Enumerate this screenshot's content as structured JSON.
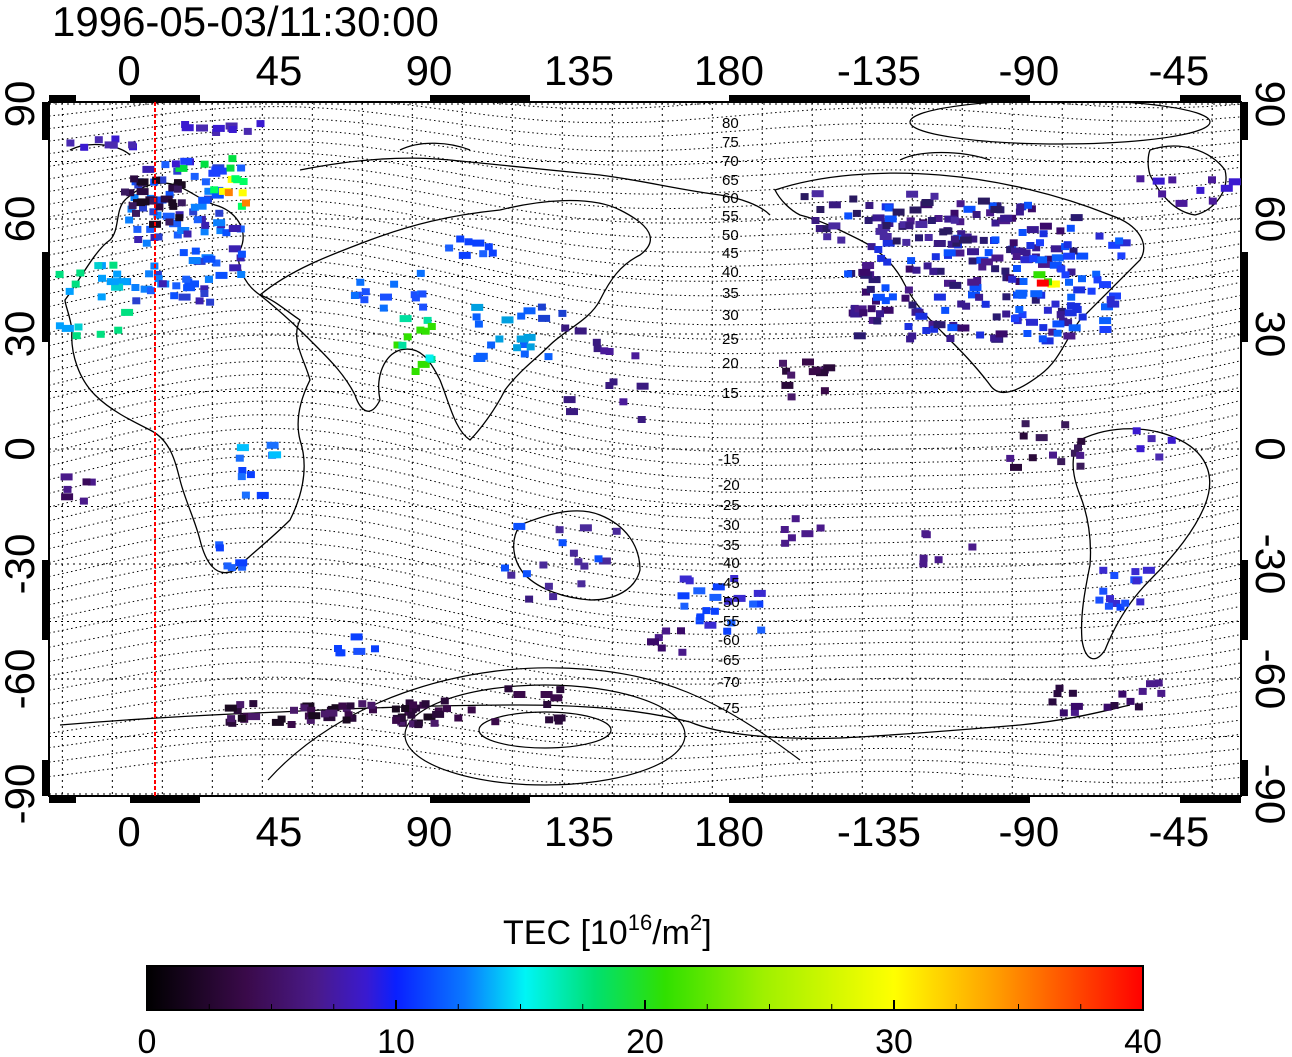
{
  "title": "1996-05-03/11:30:00",
  "map": {
    "lon_tick_labels": [
      "0",
      "45",
      "90",
      "135",
      "180",
      "-135",
      "-90",
      "-45"
    ],
    "lat_tick_labels": [
      "-90",
      "-60",
      "-30",
      "0",
      "30",
      "60",
      "90"
    ],
    "terminator_color": "#ff0000",
    "contour_labels": [
      "80",
      "75",
      "70",
      "65",
      "60",
      "55",
      "50",
      "45",
      "40",
      "35",
      "30",
      "25",
      "20",
      "15",
      "-15",
      "-20",
      "-25",
      "-30",
      "-35",
      "-40",
      "-45",
      "-50",
      "-55",
      "-60",
      "-65",
      "-70",
      "-75"
    ],
    "grid": true
  },
  "colorbar": {
    "label": "TEC  [10",
    "label_sup1": "16",
    "label_mid": "/m",
    "label_sup2": "2",
    "label_end": "]",
    "tick_labels": [
      "0",
      "10",
      "20",
      "30",
      "40"
    ],
    "colormap": [
      "#000000",
      "#3a0a4a",
      "#4a1a8a",
      "#3a1ad0",
      "#0a30ff",
      "#0a8aff",
      "#00f5f5",
      "#00e070",
      "#30e000",
      "#a0f000",
      "#ffff00",
      "#ffb000",
      "#ff5000",
      "#ff0000"
    ],
    "min": 0,
    "max": 40
  }
}
